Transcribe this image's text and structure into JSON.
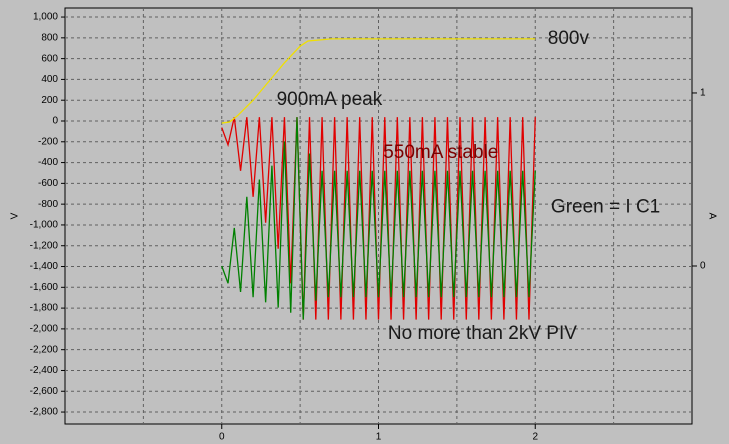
{
  "chart_data": {
    "type": "line",
    "ylabel": "V",
    "y2label": "A",
    "xlim": [
      -1,
      3
    ],
    "xticks": [
      0,
      1,
      2
    ],
    "xgrid": [
      -0.5,
      0,
      0.5,
      1,
      1.5,
      2,
      2.5
    ],
    "ylim": [
      -2915,
      1087
    ],
    "yticks": [
      {
        "value": 1000,
        "label": "1,000"
      },
      800,
      600,
      400,
      200,
      0,
      -200,
      -400,
      -600,
      -800,
      {
        "value": -1000,
        "label": "-1,000"
      },
      {
        "value": -1200,
        "label": "-1,200"
      },
      {
        "value": -1400,
        "label": "-1,400"
      },
      {
        "value": -1600,
        "label": "-1,600"
      },
      {
        "value": -1800,
        "label": "-1,800"
      },
      {
        "value": -2000,
        "label": "-2,000"
      },
      {
        "value": -2200,
        "label": "-2,200"
      },
      {
        "value": -2400,
        "label": "-2,400"
      },
      {
        "value": -2600,
        "label": "-2,600"
      },
      {
        "value": -2800,
        "label": "-2,800"
      }
    ],
    "y2lim": [
      -0.913,
      1.491
    ],
    "y2ticks": [
      0,
      1
    ],
    "grid": true,
    "x": [
      0,
      0.04,
      0.08,
      0.12,
      0.16,
      0.2,
      0.24,
      0.28,
      0.32,
      0.36,
      0.4,
      0.44,
      0.48,
      0.52,
      0.56,
      0.6,
      0.64,
      0.68,
      0.72,
      0.76,
      0.8,
      0.84,
      0.88,
      0.92,
      0.96,
      1.0,
      1.04,
      1.08,
      1.12,
      1.16,
      1.2,
      1.24,
      1.28,
      1.32,
      1.36,
      1.4,
      1.44,
      1.48,
      1.52,
      1.56,
      1.6,
      1.64,
      1.68,
      1.72,
      1.76,
      1.8,
      1.84,
      1.88,
      1.92,
      1.96,
      2.0
    ],
    "series": [
      {
        "color": "#e00000",
        "axis": "y2",
        "values": [
          0.8,
          0.7,
          0.86,
          0.55,
          0.86,
          0.4,
          0.86,
          0.25,
          0.86,
          0.1,
          0.86,
          -0.1,
          0.86,
          -0.31,
          0.86,
          -0.31,
          0.86,
          -0.31,
          0.86,
          -0.31,
          0.86,
          -0.31,
          0.86,
          -0.31,
          0.86,
          -0.31,
          0.86,
          -0.31,
          0.86,
          -0.31,
          0.86,
          -0.31,
          0.86,
          -0.31,
          0.86,
          -0.31,
          0.86,
          -0.31,
          0.86,
          -0.31,
          0.86,
          -0.31,
          0.86,
          -0.31,
          0.86,
          -0.31,
          0.86,
          -0.31,
          0.86,
          -0.31,
          0.86
        ]
      },
      {
        "color": "#008000",
        "axis": "y2",
        "values": [
          0,
          -0.1,
          0.22,
          -0.15,
          0.4,
          -0.18,
          0.5,
          -0.21,
          0.58,
          -0.24,
          0.72,
          -0.27,
          0.86,
          -0.31,
          0.65,
          -0.2,
          0.55,
          -0.18,
          0.55,
          -0.18,
          0.55,
          -0.18,
          0.55,
          -0.18,
          0.55,
          -0.18,
          0.55,
          -0.18,
          0.55,
          -0.18,
          0.55,
          -0.18,
          0.55,
          -0.18,
          0.55,
          -0.18,
          0.55,
          -0.18,
          0.55,
          -0.18,
          0.55,
          -0.18,
          0.55,
          -0.18,
          0.55,
          -0.18,
          0.55,
          -0.18,
          0.55,
          -0.18,
          0.55
        ]
      },
      {
        "color": "#f0e000",
        "x": [
          0,
          0.05,
          0.1,
          0.2,
          0.3,
          0.4,
          0.5,
          0.55,
          0.7,
          2.0
        ],
        "values": [
          -20,
          -10,
          50,
          200,
          380,
          560,
          720,
          770,
          790,
          790
        ]
      }
    ],
    "annotations": [
      {
        "text": "800v",
        "x": 2.08,
        "y": 790
      },
      {
        "text": "900mA peak",
        "x": 0.35,
        "y": 200
      },
      {
        "text": "550mA stable",
        "x": 1.03,
        "y": -310,
        "color": "#7a0000"
      },
      {
        "text": "Green = I C1",
        "x": 2.1,
        "y": -830
      },
      {
        "text": "No more than 2kV PIV",
        "x": 1.06,
        "y": -2050
      }
    ]
  }
}
